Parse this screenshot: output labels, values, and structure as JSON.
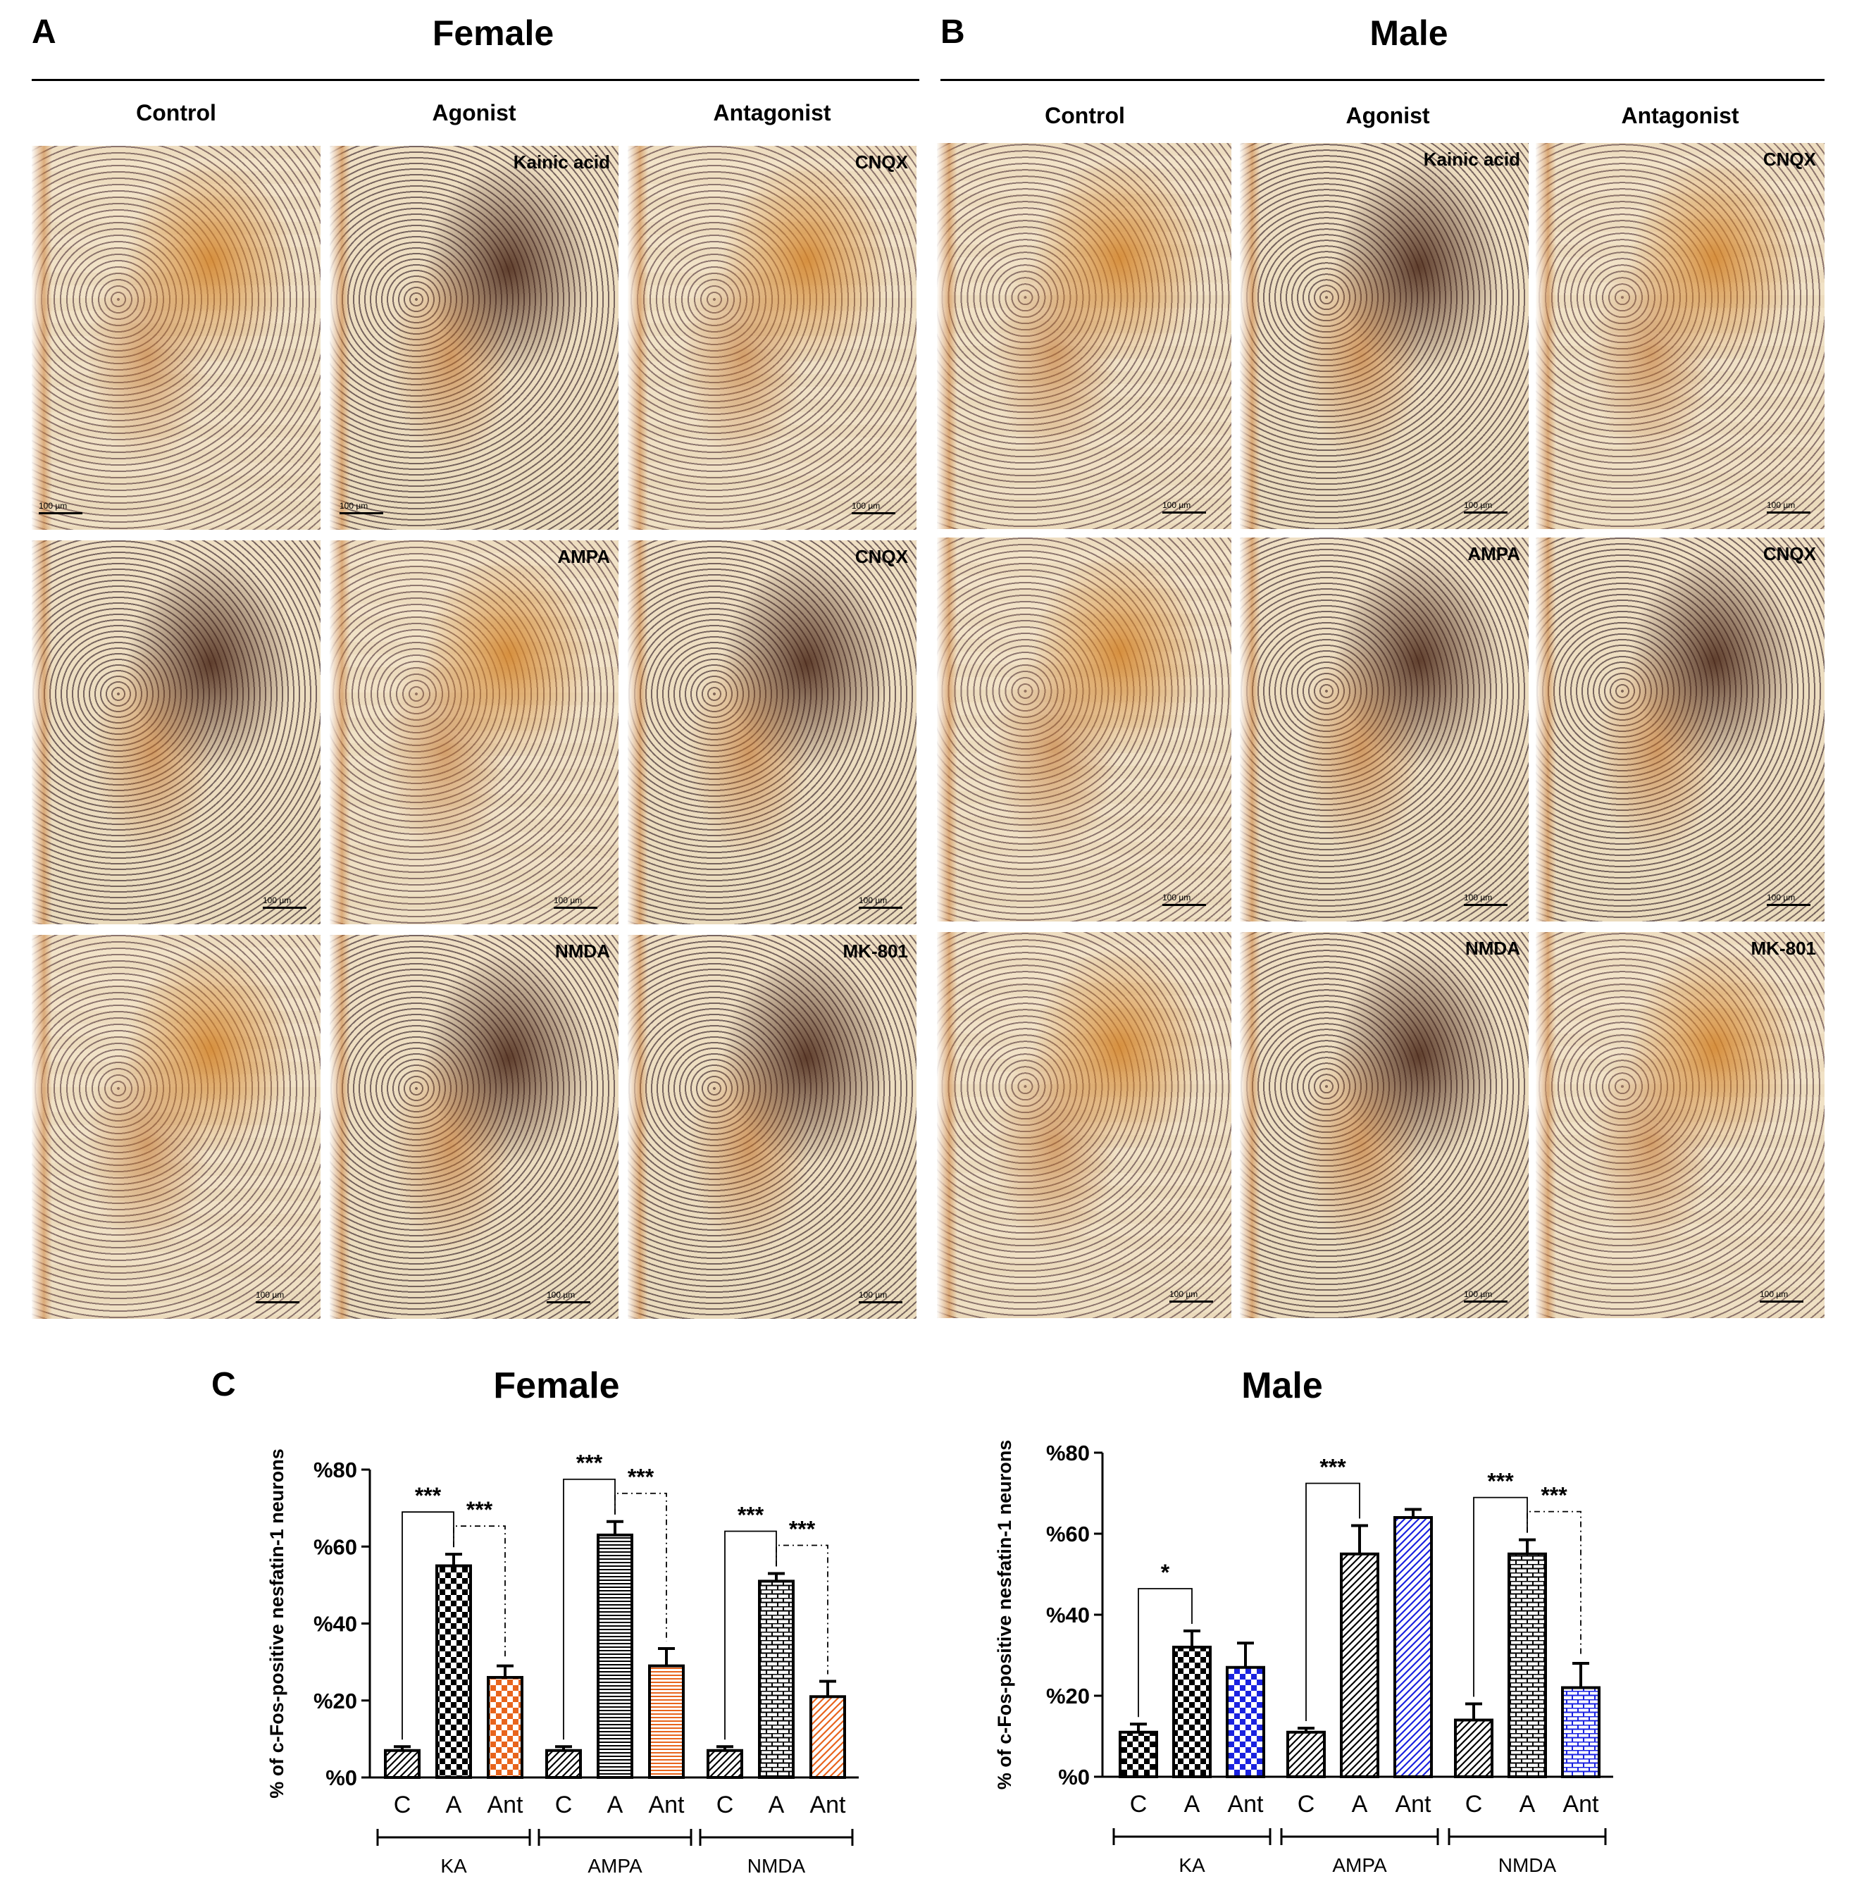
{
  "panels": {
    "a": {
      "letter": "A",
      "title": "Female",
      "col_heads": [
        "Control",
        "Agonist",
        "Antagonist"
      ],
      "rows": [
        {
          "agonist": "Kainic acid",
          "antagonist": "CNQX"
        },
        {
          "agonist": "AMPA",
          "antagonist": "CNQX"
        },
        {
          "agonist": "NMDA",
          "antagonist": "MK-801"
        }
      ],
      "scale_label": "100 µm"
    },
    "b": {
      "letter": "B",
      "title": "Male",
      "col_heads": [
        "Control",
        "Agonist",
        "Antagonist"
      ],
      "rows": [
        {
          "agonist": "Kainic acid",
          "antagonist": "CNQX"
        },
        {
          "agonist": "AMPA",
          "antagonist": "CNQX"
        },
        {
          "agonist": "NMDA",
          "antagonist": "MK-801"
        }
      ],
      "scale_label": "100 µm"
    },
    "c": {
      "letter": "C"
    }
  },
  "colors": {
    "ant_female": "#e8641c",
    "ant_male": "#1a22e0",
    "bar_border": "#000000"
  },
  "chart_data": [
    {
      "type": "bar",
      "title": "Female",
      "ylabel": "% of c-Fos-positive nesfatin-1 neurons",
      "ylim": [
        0,
        80
      ],
      "yticks": [
        "%0",
        "%20",
        "%40",
        "%60",
        "%80"
      ],
      "categories": [
        "C",
        "A",
        "Ant",
        "C",
        "A",
        "Ant",
        "C",
        "A",
        "Ant"
      ],
      "groups": [
        "KA",
        "AMPA",
        "NMDA"
      ],
      "values": [
        7,
        55,
        26,
        7,
        63,
        29,
        7,
        51,
        21
      ],
      "errors": [
        1,
        3,
        3,
        1,
        3.5,
        4.5,
        1,
        2,
        4
      ],
      "patterns": [
        "hatch-diag",
        "checker",
        "checker-color",
        "hatch-diag",
        "hlines",
        "hlines-color",
        "hatch-diag",
        "brick",
        "hatch-color"
      ],
      "significance": [
        {
          "from": 0,
          "to": 1,
          "label": "***",
          "style": "solid"
        },
        {
          "from": 1,
          "to": 2,
          "label": "***",
          "style": "dashed"
        },
        {
          "from": 3,
          "to": 4,
          "label": "***",
          "style": "solid"
        },
        {
          "from": 4,
          "to": 5,
          "label": "***",
          "style": "dashed"
        },
        {
          "from": 6,
          "to": 7,
          "label": "***",
          "style": "solid"
        },
        {
          "from": 7,
          "to": 8,
          "label": "***",
          "style": "dashed"
        }
      ]
    },
    {
      "type": "bar",
      "title": "Male",
      "ylabel": "% of c-Fos-positive nesfatin-1 neurons",
      "ylim": [
        0,
        80
      ],
      "yticks": [
        "%0",
        "%20",
        "%40",
        "%60",
        "%80"
      ],
      "categories": [
        "C",
        "A",
        "Ant",
        "C",
        "A",
        "Ant",
        "C",
        "A",
        "Ant"
      ],
      "groups": [
        "KA",
        "AMPA",
        "NMDA"
      ],
      "values": [
        11,
        32,
        27,
        11,
        55,
        64,
        14,
        55,
        22
      ],
      "errors": [
        2,
        4,
        6,
        1,
        7,
        2,
        4,
        3.5,
        6
      ],
      "patterns": [
        "checker",
        "checker",
        "checker-color",
        "hatch-diag",
        "hatch-diag",
        "hatch-color",
        "hatch-diag",
        "brick",
        "brick-color"
      ],
      "significance": [
        {
          "from": 0,
          "to": 1,
          "label": "*",
          "style": "solid"
        },
        {
          "from": 3,
          "to": 4,
          "label": "***",
          "style": "solid"
        },
        {
          "from": 6,
          "to": 7,
          "label": "***",
          "style": "solid"
        },
        {
          "from": 7,
          "to": 8,
          "label": "***",
          "style": "dashed"
        }
      ]
    }
  ]
}
